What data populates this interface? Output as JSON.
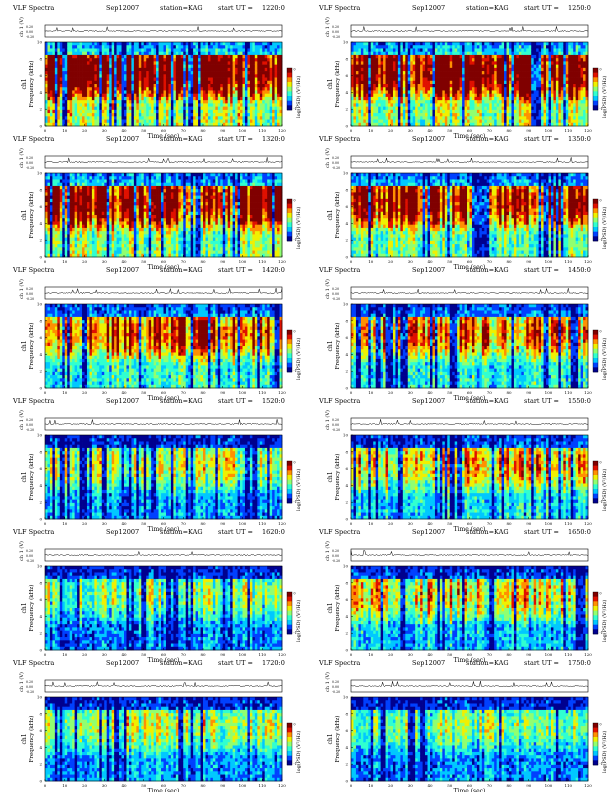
{
  "figure": {
    "title_left": "VLF Spectra",
    "date": "Sep12007",
    "station": "station=KAG",
    "start_prefix": "start UT =",
    "ch_label": "ch 1 (V)",
    "ylabel": "Frequency (kHz)",
    "ylabel_ch": "ch1",
    "xlabel": "Time (sec)",
    "colorbar_label": "log(PSD) (V²/Hz)",
    "colorbar_ticks": [
      "0",
      "-1"
    ],
    "line_ticks": [
      "0.20",
      "0.00",
      "-0.20"
    ],
    "colors": {
      "colormap": [
        "#00008f",
        "#0040ff",
        "#00c8ff",
        "#30ffd0",
        "#90ff70",
        "#f0f000",
        "#ff9000",
        "#e01000",
        "#800000"
      ],
      "line": "#000000"
    }
  },
  "chart_data": {
    "type": "heatmap",
    "xlim": [
      0,
      120
    ],
    "ylim": [
      0,
      10
    ],
    "x_ticks": [
      "0",
      "10",
      "20",
      "30",
      "40",
      "50",
      "60",
      "70",
      "80",
      "90",
      "100",
      "110",
      "120"
    ],
    "y_ticks": [
      "0",
      "2",
      "4",
      "6",
      "8",
      "10"
    ],
    "panels": [
      {
        "start_ut": "1220:0",
        "intensity": 0.82
      },
      {
        "start_ut": "1250:0",
        "intensity": 0.8
      },
      {
        "start_ut": "1320:0",
        "intensity": 0.74
      },
      {
        "start_ut": "1350:0",
        "intensity": 0.66
      },
      {
        "start_ut": "1420:0",
        "intensity": 0.6
      },
      {
        "start_ut": "1450:0",
        "intensity": 0.55
      },
      {
        "start_ut": "1520:0",
        "intensity": 0.4
      },
      {
        "start_ut": "1550:0",
        "intensity": 0.48
      },
      {
        "start_ut": "1620:0",
        "intensity": 0.36
      },
      {
        "start_ut": "1650:0",
        "intensity": 0.46
      },
      {
        "start_ut": "1720:0",
        "intensity": 0.38
      },
      {
        "start_ut": "1750:0",
        "intensity": 0.34
      }
    ]
  }
}
